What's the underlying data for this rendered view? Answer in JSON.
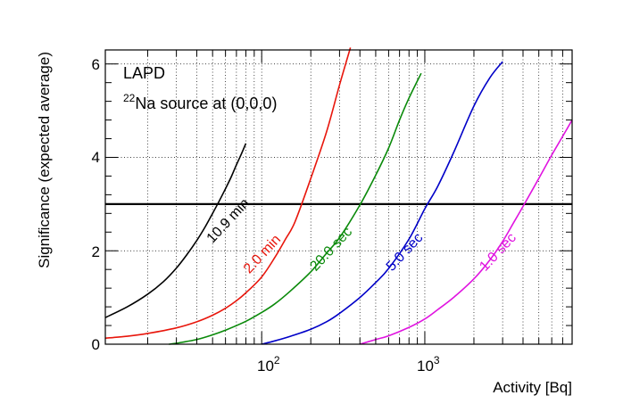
{
  "chart_data": {
    "type": "line",
    "title": "",
    "xlabel": "Activity [Bq]",
    "ylabel": "Significance (expected average)",
    "xscale": "log",
    "xlim": [
      11,
      8000
    ],
    "ylim": [
      0,
      6.3
    ],
    "x_tick_labels": [
      {
        "base": "10",
        "exp": "2",
        "value": 100
      },
      {
        "base": "10",
        "exp": "3",
        "value": 1000
      }
    ],
    "y_ticks": [
      0,
      2,
      4,
      6
    ],
    "grid": true,
    "threshold": 3,
    "annotations": {
      "line1": "LAPD",
      "line2_sup": "22",
      "line2_text": "Na source at (0,0,0)"
    },
    "series": [
      {
        "name": "10.9 min",
        "color": "#000000",
        "x": [
          11,
          15,
          20,
          25,
          30,
          35,
          40,
          45,
          50,
          55,
          60,
          65,
          70,
          75,
          80
        ],
        "y": [
          0.57,
          0.8,
          1.07,
          1.34,
          1.63,
          1.93,
          2.22,
          2.51,
          2.8,
          3.07,
          3.33,
          3.58,
          3.84,
          4.07,
          4.3
        ]
      },
      {
        "name": "2.0 min",
        "color": "#e8160c",
        "x": [
          11,
          15,
          20,
          30,
          40,
          50,
          60,
          70,
          80,
          100,
          120,
          140,
          160,
          200,
          250,
          300,
          350
        ],
        "y": [
          0.13,
          0.17,
          0.23,
          0.35,
          0.48,
          0.62,
          0.77,
          0.93,
          1.1,
          1.44,
          1.85,
          2.25,
          2.62,
          3.55,
          4.55,
          5.55,
          6.35
        ]
      },
      {
        "name": "20.0 sec",
        "color": "#0a8a0a",
        "x": [
          27,
          30,
          40,
          50,
          60,
          80,
          100,
          120,
          150,
          200,
          250,
          300,
          400,
          500,
          600,
          700,
          800,
          950
        ],
        "y": [
          0.0,
          0.02,
          0.1,
          0.2,
          0.3,
          0.49,
          0.68,
          0.86,
          1.14,
          1.55,
          1.95,
          2.28,
          2.98,
          3.62,
          4.2,
          4.8,
          5.27,
          5.8
        ]
      },
      {
        "name": "5.0 sec",
        "color": "#0000c8",
        "x": [
          100,
          120,
          150,
          200,
          250,
          300,
          400,
          500,
          600,
          800,
          1000,
          1200,
          1500,
          2000,
          2500,
          3000
        ],
        "y": [
          0.0,
          0.07,
          0.17,
          0.32,
          0.48,
          0.66,
          1.0,
          1.32,
          1.62,
          2.25,
          2.9,
          3.38,
          4.1,
          5.1,
          5.7,
          6.05
        ]
      },
      {
        "name": "1.0 sec",
        "color": "#e014e0",
        "x": [
          400,
          500,
          600,
          800,
          1000,
          1200,
          1500,
          2000,
          2500,
          3000,
          3500,
          4000,
          5000,
          6000,
          7000,
          8000
        ],
        "y": [
          0.0,
          0.1,
          0.18,
          0.36,
          0.54,
          0.74,
          1.0,
          1.4,
          1.8,
          2.2,
          2.6,
          2.95,
          3.55,
          4.05,
          4.45,
          4.8
        ]
      }
    ],
    "curve_labels": [
      {
        "text": "10.9 min",
        "series": 0,
        "x": 50,
        "y": 2.15
      },
      {
        "text": "2.0 min",
        "series": 1,
        "x": 84,
        "y": 1.5
      },
      {
        "text": "20.0 sec",
        "series": 2,
        "x": 215,
        "y": 1.55
      },
      {
        "text": "5.0 sec",
        "series": 3,
        "x": 630,
        "y": 1.55
      },
      {
        "text": "1.0 sec",
        "series": 4,
        "x": 2350,
        "y": 1.55
      }
    ]
  }
}
